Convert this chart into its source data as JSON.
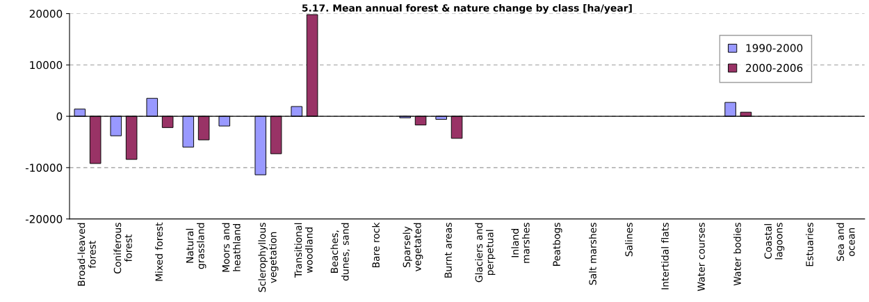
{
  "chart_data": {
    "type": "bar",
    "title": "5.17. Mean annual forest & nature change by class [ha/year]",
    "categories": [
      "Broad-leaved\nforest",
      "Coniferous\nforest",
      "Mixed forest",
      "Natural\ngrassland",
      "Moors and\nheathland",
      "Sclerophyllous\nvegetation",
      "Transitional\nwoodland",
      "Beaches,\ndunes, sand",
      "Bare rock",
      "Sparsely\nvegetated",
      "Burnt areas",
      "Glaciers and\nperpetual",
      "Inland\nmarshes",
      "Peatbogs",
      "Salt marshes",
      "Salines",
      "Intertidal flats",
      "Water courses",
      "Water bodies",
      "Coastal\nlagoons",
      "Estuaries",
      "Sea and\nocean"
    ],
    "series": [
      {
        "name": "1990-2000",
        "color": "#9999ff",
        "values": [
          1400,
          -3800,
          3500,
          -6000,
          -1900,
          -11400,
          1900,
          null,
          null,
          -300,
          -600,
          null,
          null,
          null,
          null,
          null,
          null,
          null,
          2700,
          null,
          null,
          null
        ]
      },
      {
        "name": "2000-2006",
        "color": "#993366",
        "values": [
          -9200,
          -8400,
          -2200,
          -4600,
          null,
          -7300,
          19800,
          null,
          null,
          -1700,
          -4300,
          null,
          null,
          null,
          null,
          null,
          null,
          null,
          800,
          null,
          null,
          null
        ]
      }
    ],
    "ylim": [
      -20000,
      20000
    ],
    "yticks": [
      -20000,
      -10000,
      0,
      10000,
      20000
    ],
    "grid": "y",
    "legend": "top right"
  }
}
